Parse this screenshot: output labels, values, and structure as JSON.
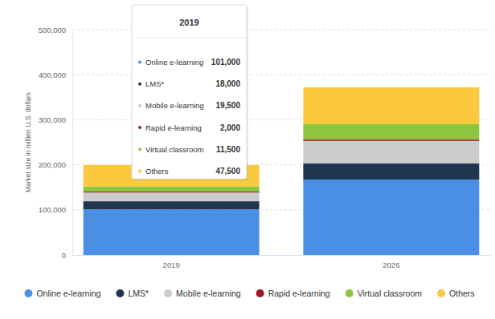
{
  "chart_data": {
    "type": "bar",
    "stacked": true,
    "grid": true,
    "legend": "bottom",
    "y_label": "Market size in million U.S. dollars",
    "categories": [
      "2019",
      "2026"
    ],
    "ylim": [
      0,
      500000
    ],
    "yticks": [
      0,
      {
        "value": 100000,
        "label": "100,000"
      },
      {
        "value": 200000,
        "label": "200,000"
      },
      {
        "value": 300000,
        "label": "300,000"
      },
      {
        "value": 400000,
        "label": "400,000"
      },
      {
        "value": 500000,
        "label": "500,000"
      }
    ],
    "series": [
      {
        "name": "Online e-learning",
        "color": "#4a8fe3",
        "values": [
          101000,
          167000
        ],
        "value_labels": [
          "101,000",
          null
        ]
      },
      {
        "name": "LMS*",
        "color": "#1f3550",
        "values": [
          18000,
          36000
        ],
        "value_labels": [
          "18,000",
          null
        ]
      },
      {
        "name": "Mobile e-learning",
        "color": "#cbcbcb",
        "values": [
          19500,
          50000
        ],
        "value_labels": [
          "19,500",
          null
        ]
      },
      {
        "name": "Rapid e-learning",
        "color": "#a3171e",
        "values": [
          2000,
          3000
        ],
        "value_labels": [
          "2,000",
          null
        ]
      },
      {
        "name": "Virtual classroom",
        "color": "#8cc63f",
        "values": [
          11500,
          34000
        ],
        "value_labels": [
          "11,500",
          null
        ]
      },
      {
        "name": "Others",
        "color": "#fbc93d",
        "values": [
          47500,
          82000
        ],
        "value_labels": [
          "47,500",
          null
        ]
      }
    ]
  }
}
